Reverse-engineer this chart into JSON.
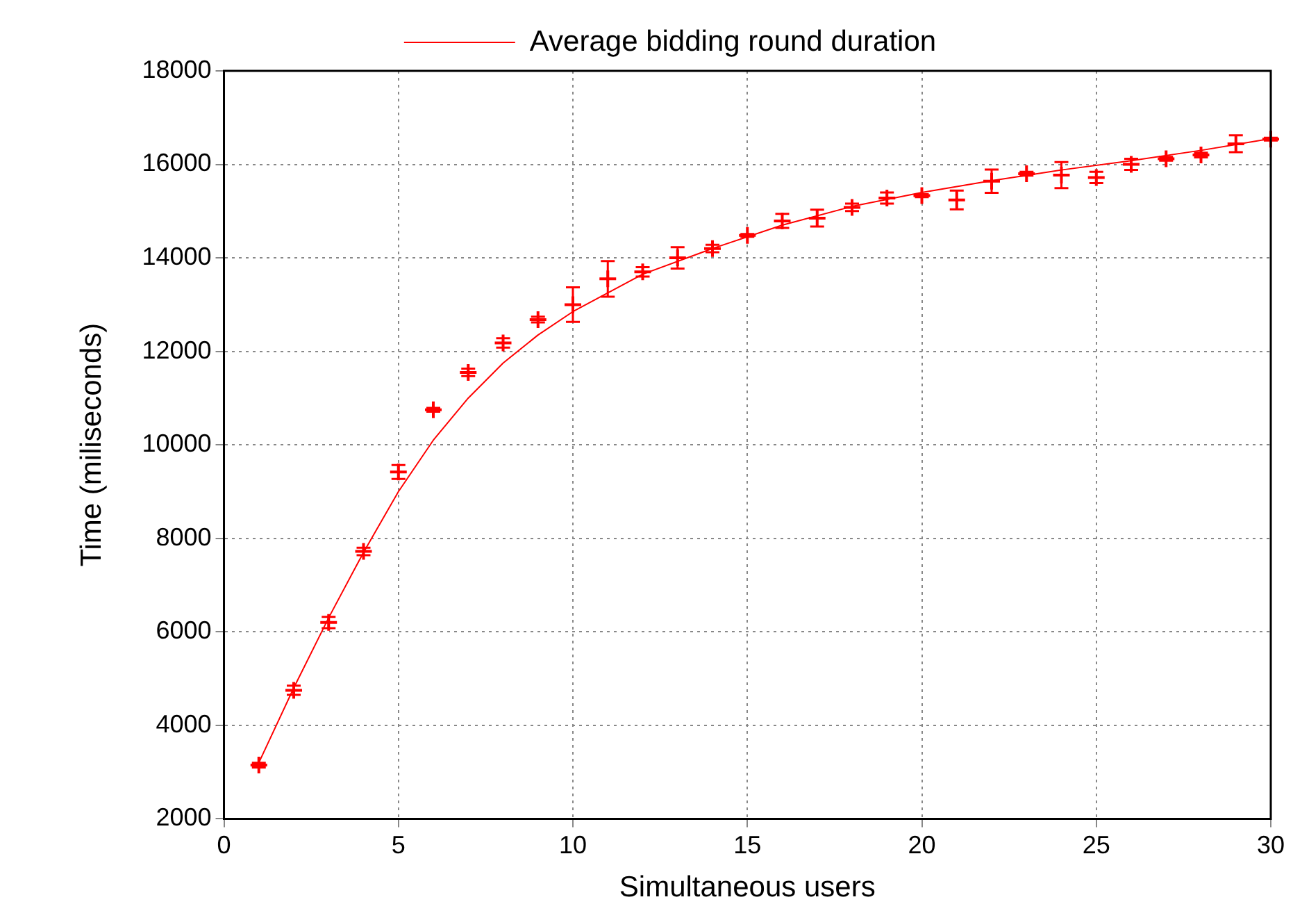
{
  "chart_data": {
    "type": "scatter",
    "xlabel": "Simultaneous users",
    "ylabel": "Time (miliseconds)",
    "xlim": [
      0,
      30
    ],
    "xticks": [
      0,
      5,
      10,
      15,
      20,
      25,
      30
    ],
    "ylim": [
      2000,
      18000
    ],
    "yticks": [
      2000,
      4000,
      6000,
      8000,
      10000,
      12000,
      14000,
      16000,
      18000
    ],
    "grid": true,
    "legend": "top",
    "marker": "cross",
    "series": [
      {
        "type": "scatter",
        "color": "#ff0000",
        "x": [
          1,
          2,
          3,
          4,
          5,
          6,
          7,
          8,
          9,
          10,
          11,
          12,
          13,
          14,
          15,
          16,
          17,
          18,
          19,
          20,
          21,
          22,
          23,
          24,
          25,
          26,
          27,
          28,
          29,
          30
        ],
        "values": [
          3150,
          4750,
          6200,
          7720,
          9420,
          10750,
          11550,
          12180,
          12680,
          13000,
          13550,
          13700,
          14000,
          14200,
          14480,
          14790,
          14850,
          15080,
          15280,
          15330,
          15240,
          15640,
          15800,
          15770,
          15720,
          16000,
          16120,
          16200,
          16440,
          16540
        ],
        "errors": [
          50,
          100,
          120,
          80,
          150,
          40,
          80,
          100,
          60,
          370,
          380,
          100,
          230,
          80,
          30,
          150,
          180,
          80,
          120,
          30,
          200,
          250,
          40,
          280,
          120,
          120,
          40,
          50,
          180,
          30
        ]
      },
      {
        "type": "line",
        "name": "Average bidding round duration",
        "color": "#ff0000",
        "line_style": "solid",
        "marker": "none",
        "x": [
          1,
          2,
          3,
          4,
          5,
          6,
          7,
          8,
          9,
          10,
          12,
          14,
          16,
          18,
          20,
          22,
          24,
          26,
          28,
          30
        ],
        "values": [
          3200,
          4800,
          6300,
          7700,
          9000,
          10100,
          11000,
          11750,
          12350,
          12850,
          13650,
          14200,
          14700,
          15100,
          15400,
          15650,
          15880,
          16080,
          16300,
          16550
        ]
      }
    ]
  }
}
